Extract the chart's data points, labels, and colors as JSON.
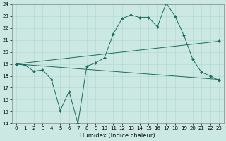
{
  "title": "",
  "xlabel": "Humidex (Indice chaleur)",
  "ylabel": "",
  "bg_color": "#cbe8e3",
  "line_color": "#1a6b5e",
  "grid_color": "#b0d8d0",
  "xlim": [
    -0.5,
    23.5
  ],
  "ylim": [
    14,
    24
  ],
  "xticks": [
    0,
    1,
    2,
    3,
    4,
    5,
    6,
    7,
    8,
    9,
    10,
    11,
    12,
    13,
    14,
    15,
    16,
    17,
    18,
    19,
    20,
    21,
    22,
    23
  ],
  "yticks": [
    14,
    15,
    16,
    17,
    18,
    19,
    20,
    21,
    22,
    23,
    24
  ],
  "line1_x": [
    0,
    1,
    2,
    3,
    4,
    5,
    6,
    7,
    8,
    9,
    10,
    11,
    12,
    13,
    14,
    15,
    16,
    17,
    18,
    19,
    20,
    21,
    22,
    23
  ],
  "line1_y": [
    19,
    18.9,
    18.4,
    18.5,
    17.7,
    15.1,
    16.7,
    14.0,
    18.8,
    19.1,
    19.5,
    21.5,
    22.8,
    23.1,
    22.9,
    22.9,
    22.1,
    24.1,
    23.0,
    21.4,
    19.4,
    18.3,
    18.0,
    17.6
  ],
  "line2_x": [
    0,
    23
  ],
  "line2_y": [
    19.0,
    20.9
  ],
  "line3_x": [
    0,
    23
  ],
  "line3_y": [
    19.0,
    17.7
  ],
  "figwidth": 3.2,
  "figheight": 2.0,
  "dpi": 100
}
